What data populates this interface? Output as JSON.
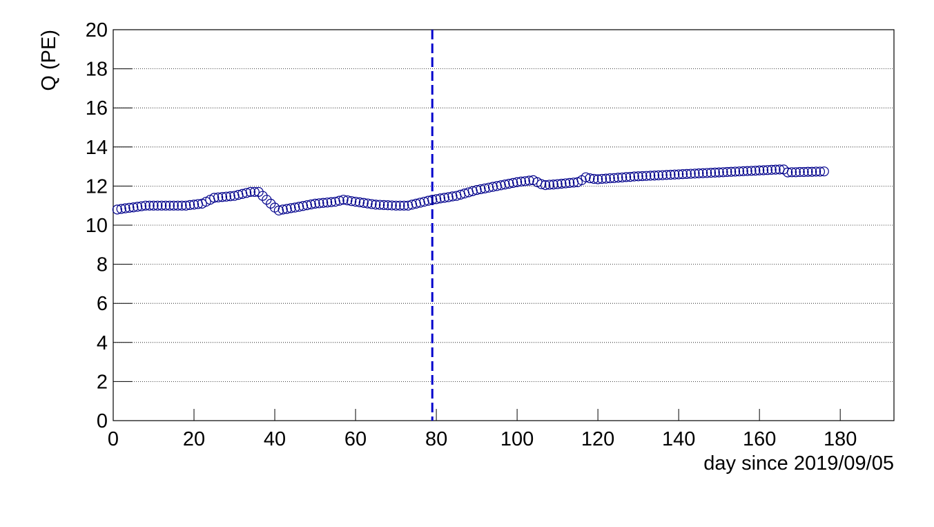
{
  "chart_data": {
    "type": "scatter",
    "y_label": "Q (PE)",
    "x_label": "day since 2019/09/05",
    "xlim": [
      0,
      193.3
    ],
    "ylim": [
      0,
      20
    ],
    "xticks": [
      0,
      20,
      40,
      60,
      80,
      100,
      120,
      140,
      160,
      180
    ],
    "yticks": [
      0,
      2,
      4,
      6,
      8,
      10,
      12,
      14,
      16,
      18,
      20
    ],
    "grid": "y",
    "vline": 79,
    "vline_color": "#0000cc",
    "series": [
      {
        "color": "#00008b",
        "x": [
          1,
          2,
          3,
          4,
          5,
          6,
          7,
          8,
          9,
          10,
          11,
          12,
          13,
          14,
          15,
          16,
          17,
          18,
          19,
          20,
          21,
          22,
          23,
          24,
          25,
          26,
          27,
          28,
          29,
          30,
          31,
          32,
          33,
          34,
          35,
          36,
          37,
          38,
          39,
          40,
          41,
          42,
          43,
          44,
          45,
          46,
          47,
          48,
          49,
          50,
          51,
          52,
          53,
          54,
          55,
          56,
          57,
          58,
          59,
          60,
          61,
          62,
          63,
          64,
          65,
          66,
          67,
          68,
          69,
          70,
          71,
          72,
          73,
          74,
          75,
          76,
          77,
          78,
          79,
          80,
          81,
          82,
          83,
          84,
          85,
          86,
          87,
          88,
          89,
          90,
          91,
          92,
          93,
          94,
          95,
          96,
          97,
          98,
          99,
          100,
          101,
          102,
          103,
          104,
          105,
          106,
          107,
          108,
          109,
          110,
          111,
          112,
          113,
          114,
          115,
          116,
          117,
          118,
          119,
          120,
          121,
          122,
          123,
          124,
          125,
          126,
          127,
          128,
          129,
          130,
          131,
          132,
          133,
          134,
          135,
          136,
          137,
          138,
          139,
          140,
          141,
          142,
          143,
          144,
          145,
          146,
          147,
          148,
          149,
          150,
          151,
          152,
          153,
          154,
          155,
          156,
          157,
          158,
          159,
          160,
          161,
          162,
          163,
          164,
          165,
          166,
          167,
          168,
          169,
          170,
          171,
          172,
          173,
          174,
          175,
          176
        ],
        "values": [
          10.8,
          10.83,
          10.86,
          10.89,
          10.91,
          10.94,
          10.97,
          11.0,
          11.0,
          11.0,
          11.0,
          11.0,
          11.0,
          11.0,
          11.0,
          11.0,
          11.0,
          11.0,
          11.03,
          11.05,
          11.08,
          11.1,
          11.2,
          11.3,
          11.4,
          11.42,
          11.44,
          11.46,
          11.48,
          11.5,
          11.55,
          11.6,
          11.65,
          11.7,
          11.7,
          11.7,
          11.5,
          11.3,
          11.1,
          10.9,
          10.75,
          10.8,
          10.83,
          10.87,
          10.9,
          10.94,
          10.98,
          11.02,
          11.06,
          11.1,
          11.12,
          11.14,
          11.16,
          11.18,
          11.2,
          11.25,
          11.3,
          11.27,
          11.23,
          11.2,
          11.17,
          11.14,
          11.11,
          11.08,
          11.05,
          11.04,
          11.03,
          11.02,
          11.01,
          11.0,
          11.0,
          11.0,
          11.0,
          11.05,
          11.1,
          11.15,
          11.2,
          11.25,
          11.3,
          11.33,
          11.37,
          11.4,
          11.43,
          11.47,
          11.5,
          11.56,
          11.62,
          11.68,
          11.74,
          11.8,
          11.84,
          11.88,
          11.92,
          11.96,
          12.0,
          12.04,
          12.08,
          12.12,
          12.16,
          12.2,
          12.23,
          12.25,
          12.28,
          12.3,
          12.2,
          12.1,
          12.05,
          12.07,
          12.08,
          12.1,
          12.12,
          12.14,
          12.16,
          12.18,
          12.2,
          12.3,
          12.45,
          12.4,
          12.37,
          12.35,
          12.37,
          12.38,
          12.4,
          12.41,
          12.43,
          12.44,
          12.46,
          12.47,
          12.49,
          12.5,
          12.51,
          12.52,
          12.53,
          12.54,
          12.55,
          12.56,
          12.57,
          12.58,
          12.59,
          12.6,
          12.61,
          12.62,
          12.63,
          12.64,
          12.65,
          12.66,
          12.67,
          12.68,
          12.69,
          12.7,
          12.71,
          12.72,
          12.73,
          12.74,
          12.75,
          12.76,
          12.77,
          12.78,
          12.79,
          12.8,
          12.81,
          12.82,
          12.83,
          12.84,
          12.85,
          12.85,
          12.7,
          12.71,
          12.71,
          12.72,
          12.72,
          12.73,
          12.73,
          12.74,
          12.74,
          12.75
        ]
      }
    ]
  }
}
